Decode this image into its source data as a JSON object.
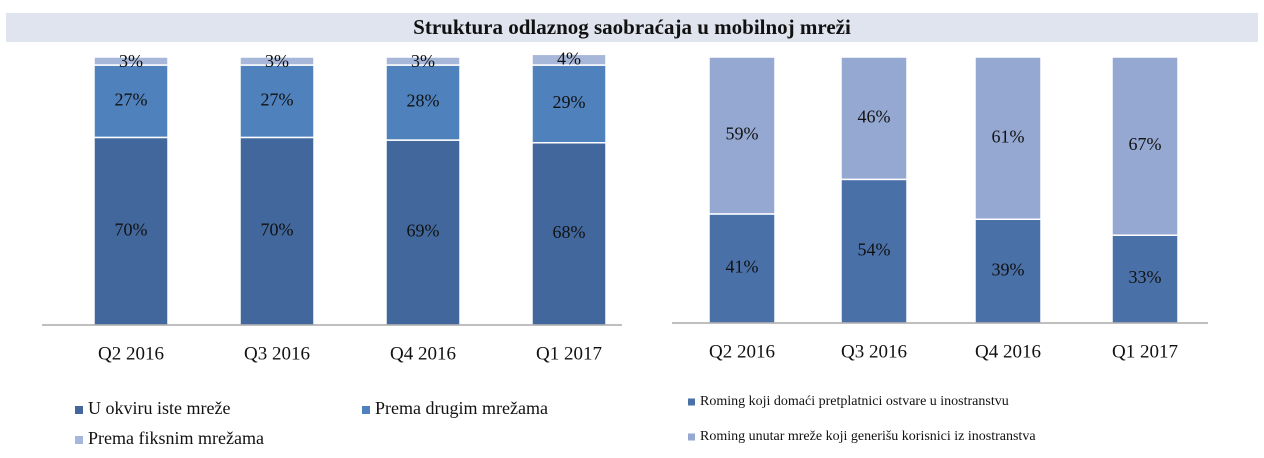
{
  "title": "Struktura odlaznog saobraćaja u mobilnoj mreži",
  "chart_data": [
    {
      "type": "bar",
      "stacked": true,
      "categories": [
        "Q2 2016",
        "Q3 2016",
        "Q4 2016",
        "Q1 2017"
      ],
      "ylim": [
        0,
        100
      ],
      "series": [
        {
          "name": "U okviru iste mreže",
          "color": "#41679c",
          "values": [
            70,
            70,
            69,
            68
          ],
          "value_labels": [
            "70%",
            "70%",
            "69%",
            "68%"
          ]
        },
        {
          "name": "Prema drugim mrežama",
          "color": "#4f81bd",
          "values": [
            27,
            27,
            28,
            29
          ],
          "value_labels": [
            "27%",
            "27%",
            "28%",
            "29%"
          ]
        },
        {
          "name": "Prema fiksnim mrežama",
          "color": "#a7b7d9",
          "values": [
            3,
            3,
            3,
            4
          ],
          "value_labels": [
            "3%",
            "3%",
            "3%",
            "4%"
          ]
        }
      ]
    },
    {
      "type": "bar",
      "stacked": true,
      "categories": [
        "Q2 2016",
        "Q3 2016",
        "Q4 2016",
        "Q1 2017"
      ],
      "ylim": [
        0,
        100
      ],
      "series": [
        {
          "name": "Roming koji domaći pretplatnici ostvare u inostranstvu",
          "color": "#4a70a8",
          "values": [
            41,
            54,
            39,
            33
          ],
          "value_labels": [
            "41%",
            "54%",
            "39%",
            "33%"
          ]
        },
        {
          "name": "Roming unutar mreže koji generišu korisnici iz inostranstva",
          "color": "#95a8d2",
          "values": [
            59,
            46,
            61,
            67
          ],
          "value_labels": [
            "59%",
            "46%",
            "61%",
            "67%"
          ]
        }
      ]
    }
  ]
}
